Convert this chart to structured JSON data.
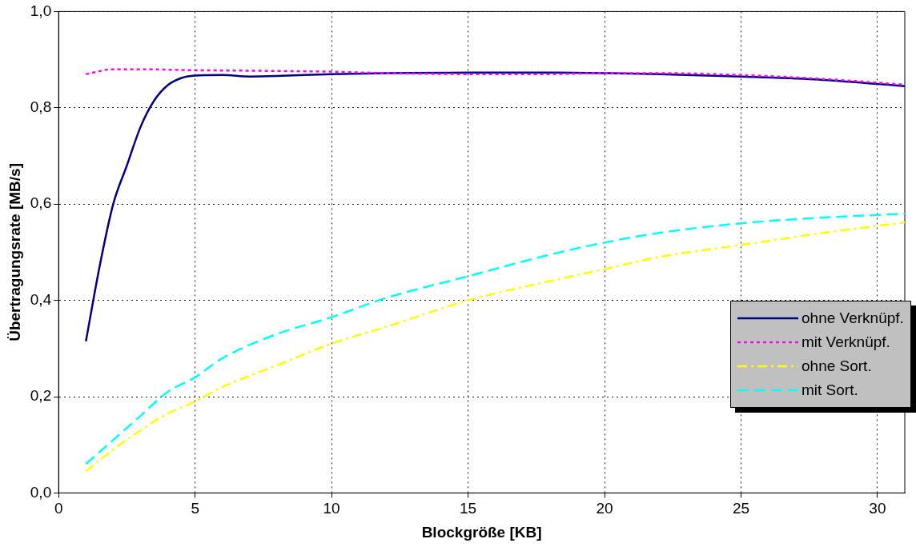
{
  "chart_data": {
    "type": "line",
    "xlabel": "Blockgröße [KB]",
    "ylabel": "Übertragungsrate [MB/s]",
    "xlim": [
      0,
      31
    ],
    "xticks": [
      0,
      5,
      10,
      15,
      20,
      25,
      30
    ],
    "ylim": [
      0,
      1
    ],
    "yticks": [
      {
        "value": 0,
        "label": "0,0"
      },
      {
        "value": 0.2,
        "label": "0,2"
      },
      {
        "value": 0.4,
        "label": "0,4"
      },
      {
        "value": 0.6,
        "label": "0,6"
      },
      {
        "value": 0.8,
        "label": "0,8"
      },
      {
        "value": 1,
        "label": "1,0"
      }
    ],
    "grid": true,
    "legend": "right",
    "marker": "none",
    "series": [
      {
        "name": "ohne Verknüpf.",
        "color": "#000080",
        "line_style": "solid",
        "x": [
          1,
          1.5,
          2,
          2.5,
          3,
          3.5,
          4,
          4.5,
          5,
          6,
          7,
          8,
          10,
          12,
          15,
          18,
          20,
          22,
          25,
          28,
          31
        ],
        "values": [
          0.315,
          0.47,
          0.6,
          0.68,
          0.76,
          0.815,
          0.847,
          0.862,
          0.867,
          0.868,
          0.865,
          0.866,
          0.87,
          0.872,
          0.873,
          0.873,
          0.872,
          0.87,
          0.865,
          0.858,
          0.845
        ]
      },
      {
        "name": "mit Verknüpf.",
        "color": "#ff00ff",
        "line_style": "dotted",
        "x": [
          1,
          2,
          3,
          5,
          7,
          10,
          12,
          15,
          18,
          20,
          22,
          25,
          28,
          31
        ],
        "values": [
          0.87,
          0.88,
          0.88,
          0.878,
          0.877,
          0.875,
          0.872,
          0.87,
          0.87,
          0.872,
          0.872,
          0.868,
          0.86,
          0.848
        ]
      },
      {
        "name": "ohne Sort.",
        "color": "#ffff00",
        "line_style": "dashdot",
        "x": [
          1,
          2,
          3,
          4,
          5,
          6,
          8,
          10,
          12,
          15,
          18,
          20,
          22,
          25,
          28,
          31
        ],
        "values": [
          0.045,
          0.09,
          0.13,
          0.165,
          0.19,
          0.22,
          0.265,
          0.31,
          0.345,
          0.4,
          0.44,
          0.465,
          0.49,
          0.515,
          0.54,
          0.562
        ]
      },
      {
        "name": "mit Sort.",
        "color": "#00ffff",
        "line_style": "dashed",
        "x": [
          1,
          2,
          3,
          4,
          5,
          6,
          8,
          10,
          12,
          15,
          18,
          20,
          22,
          25,
          28,
          31
        ],
        "values": [
          0.06,
          0.11,
          0.16,
          0.21,
          0.24,
          0.28,
          0.33,
          0.365,
          0.405,
          0.45,
          0.495,
          0.52,
          0.54,
          0.56,
          0.572,
          0.58
        ]
      }
    ]
  }
}
